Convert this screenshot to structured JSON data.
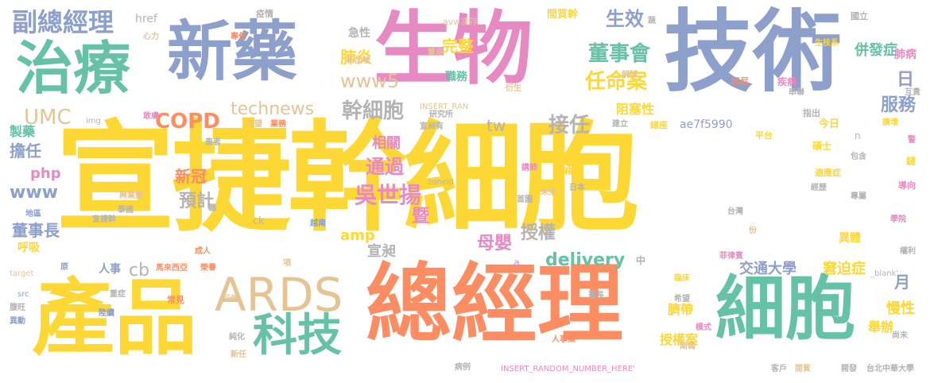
{
  "words": {
    "w1": "宣捷幹細胞",
    "w2": "總經理",
    "w3": "產品",
    "w4": "技術",
    "w5": "生物",
    "w6": "新藥",
    "w7": "治療",
    "w8": "細胞",
    "w9": "科技",
    "w10": "ARDS",
    "w11": "副總經理",
    "w12": "UMC",
    "w13": "COPD",
    "w14": "technews",
    "w15": "www5",
    "w16": "董事會",
    "w17": "任命案",
    "w18": "生效",
    "w19": "肺炎",
    "w20": "完整",
    "w21": "吳世揚",
    "w22": "通過",
    "w23": "幹細胞",
    "w24": "接任",
    "w25": "服務",
    "w26": "預計",
    "w27": "董事長",
    "w28": "新冠",
    "w29": "delivery",
    "w30": "授權",
    "w31": "母嬰",
    "w32": "交通大學",
    "w33": "併發症",
    "w34": "www",
    "w35": "擔任",
    "w36": "製藥",
    "w37": "php",
    "w38": "amp",
    "w39": "宣昶",
    "w40": "相關",
    "w41": "阻塞性",
    "w42": "窘迫症",
    "w43": "月",
    "w44": "日",
    "w45": "tw",
    "w46": "cb",
    "w47": "ae7f5990",
    "w48": "慢性",
    "w49": "舉辦",
    "w50": "授權案",
    "w51": "臍帶",
    "w52": "異體",
    "w53": "肺病",
    "w54": "呼吸",
    "w55": "人事",
    "w56": "href",
    "w57": "急性",
    "w58": "職務",
    "w59": "暨",
    "w60": "間質幹",
    "w61": "疫情",
    "w62": "avw凍存",
    "w63": "心力",
    "w64": "專任",
    "w65": "新加坡",
    "w66": "董座",
    "w67": "衍生",
    "w68": "解除",
    "w69": "疾病",
    "w70": "串聯",
    "w71": "印尼",
    "w72": "互貴",
    "w73": "國立",
    "w74": "生技系",
    "w75": "INSERT_RAN",
    "w76": "宣昶有",
    "w77": "可望",
    "w78": "業務",
    "w79": "敢膚",
    "w80": "img",
    "w81": "指出",
    "w82": "建立",
    "w83": "總座",
    "w84": "今日",
    "w85": "平台",
    "w86": "擴增",
    "w87": "碩士",
    "w88": "包含",
    "w89": "鏈",
    "w90": "患者",
    "w91": "來源",
    "w92": "藉由",
    "w93": "講師",
    "w94": "zoneid",
    "w95": "適應症",
    "w96": "導向",
    "w97": "經歷",
    "w98": "專屬",
    "w99": "學院",
    "w100": "台灣",
    "w101": "份",
    "w102": "權利",
    "w103": "菲律賓",
    "w104": "_blank'",
    "w105": "臨床",
    "w106": "希望",
    "w107": "運長",
    "w108": "模式",
    "w109": "尚未",
    "w110": "人事案",
    "w111": "南韓",
    "w112": "客戶",
    "w113": "開發",
    "w114": "台北中華大學",
    "w115": "間質",
    "w116": "病例",
    "w117": "INSERT_RANDOM_NUMBER_HERE'",
    "w118": "新任",
    "w119": "純化",
    "w120": "衍伸",
    "w121": "陸續",
    "w122": "常見",
    "w123": "重症",
    "w124": "src",
    "w125": "腹旺",
    "w126": "異動",
    "w127": "target",
    "w128": "原",
    "w129": "項",
    "w130": "成人",
    "w131": "馬來西亞",
    "w132": "榮譽",
    "w133": "興業變",
    "w134": "泰國",
    "w135": "地區",
    "w136": "宣捷幹",
    "w137": "ck",
    "w138": "越南",
    "w139": "首園",
    "w140": "日本",
    "w141": "未來",
    "w142": "研究所",
    "w143": "中",
    "w144": "a",
    "w145": "n",
    "w146": "職",
    "w147": "蔬",
    "w148": "警"
  }
}
